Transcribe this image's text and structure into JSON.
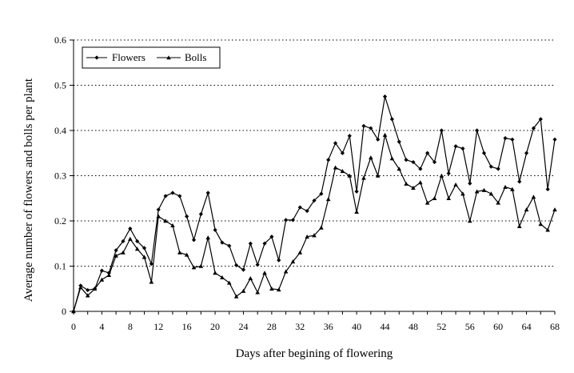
{
  "chart_data": {
    "type": "line",
    "title": "",
    "xlabel": "Days after begining of flowering",
    "ylabel": "Average number of flowers and bolls per plant",
    "xlim": [
      0,
      68
    ],
    "ylim": [
      0,
      0.6
    ],
    "x_ticks": [
      "0",
      "4",
      "8",
      "12",
      "16",
      "20",
      "24",
      "28",
      "32",
      "36",
      "40",
      "44",
      "48",
      "52",
      "56",
      "60",
      "64",
      "68"
    ],
    "y_ticks": [
      "0",
      "0.1",
      "0.2",
      "0.3",
      "0.4",
      "0.5",
      "0.6"
    ],
    "grid": "horizontal dotted",
    "legend_position": "top-left",
    "x": [
      0,
      1,
      2,
      3,
      4,
      5,
      6,
      7,
      8,
      9,
      10,
      11,
      12,
      13,
      14,
      15,
      16,
      17,
      18,
      19,
      20,
      21,
      22,
      23,
      24,
      25,
      26,
      27,
      28,
      29,
      30,
      31,
      32,
      33,
      34,
      35,
      36,
      37,
      38,
      39,
      40,
      41,
      42,
      43,
      44,
      45,
      46,
      47,
      48,
      49,
      50,
      51,
      52,
      53,
      54,
      55,
      56,
      57,
      58,
      59,
      60,
      61,
      62,
      63,
      64,
      65,
      66,
      67,
      68
    ],
    "series": [
      {
        "name": "Flowers",
        "marker": "diamond",
        "color": "#000000",
        "values": [
          0.0,
          0.057,
          0.047,
          0.05,
          0.09,
          0.085,
          0.135,
          0.155,
          0.183,
          0.155,
          0.14,
          0.105,
          0.225,
          0.255,
          0.262,
          0.255,
          0.21,
          0.158,
          0.215,
          0.262,
          0.18,
          0.152,
          0.145,
          0.102,
          0.092,
          0.15,
          0.103,
          0.15,
          0.165,
          0.113,
          0.202,
          0.202,
          0.23,
          0.222,
          0.245,
          0.26,
          0.335,
          0.372,
          0.35,
          0.388,
          0.265,
          0.41,
          0.405,
          0.38,
          0.475,
          0.425,
          0.375,
          0.335,
          0.33,
          0.315,
          0.35,
          0.33,
          0.4,
          0.305,
          0.365,
          0.36,
          0.283,
          0.4,
          0.35,
          0.32,
          0.315,
          0.383,
          0.38,
          0.287,
          0.35,
          0.405,
          0.425,
          0.27,
          0.38
        ]
      },
      {
        "name": "Bolls",
        "marker": "triangle",
        "color": "#000000",
        "values": [
          0.0,
          0.053,
          0.035,
          0.05,
          0.07,
          0.08,
          0.123,
          0.13,
          0.16,
          0.138,
          0.12,
          0.065,
          0.21,
          0.2,
          0.19,
          0.13,
          0.125,
          0.097,
          0.1,
          0.163,
          0.085,
          0.075,
          0.063,
          0.033,
          0.045,
          0.073,
          0.042,
          0.085,
          0.05,
          0.048,
          0.088,
          0.11,
          0.13,
          0.165,
          0.168,
          0.185,
          0.248,
          0.318,
          0.31,
          0.3,
          0.22,
          0.295,
          0.34,
          0.3,
          0.39,
          0.338,
          0.315,
          0.282,
          0.273,
          0.285,
          0.24,
          0.25,
          0.3,
          0.25,
          0.28,
          0.26,
          0.2,
          0.265,
          0.268,
          0.26,
          0.24,
          0.275,
          0.27,
          0.188,
          0.225,
          0.253,
          0.193,
          0.18,
          0.225
        ]
      }
    ]
  }
}
